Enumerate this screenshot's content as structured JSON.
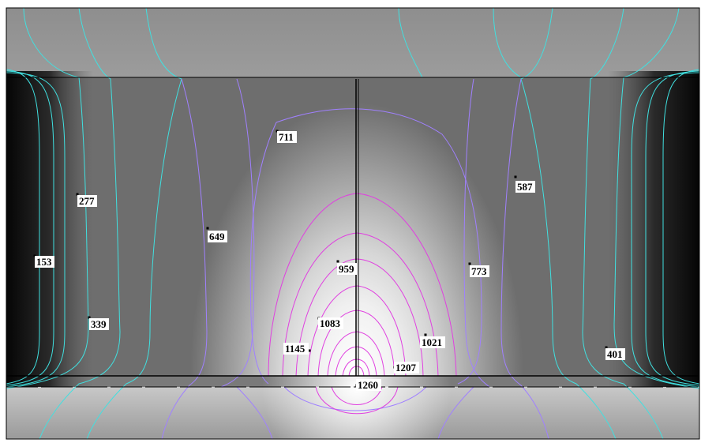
{
  "figure": {
    "type": "isotherm contour plot",
    "colors": {
      "background_dark": "#0a0a0a",
      "background_light": "#f6f6f6",
      "cool_contour": "#40e0e0",
      "mid_contour": "#a080ff",
      "hot_contour": "#e040e0",
      "structure_line": "#000000"
    },
    "contour_labels": [
      {
        "id": "711",
        "text": "711",
        "zone": "mid"
      },
      {
        "id": "587",
        "text": "587",
        "zone": "mid"
      },
      {
        "id": "277",
        "text": "277",
        "zone": "cool"
      },
      {
        "id": "649",
        "text": "649",
        "zone": "mid"
      },
      {
        "id": "153",
        "text": "153",
        "zone": "cool"
      },
      {
        "id": "959",
        "text": "959",
        "zone": "hot"
      },
      {
        "id": "773",
        "text": "773",
        "zone": "mid"
      },
      {
        "id": "339",
        "text": "339",
        "zone": "cool"
      },
      {
        "id": "1083",
        "text": "1083",
        "zone": "hot"
      },
      {
        "id": "1021",
        "text": "1021",
        "zone": "hot"
      },
      {
        "id": "1145",
        "text": "1145",
        "zone": "hot"
      },
      {
        "id": "401",
        "text": "401",
        "zone": "cool"
      },
      {
        "id": "1207",
        "text": "1207",
        "zone": "hot"
      },
      {
        "id": "1260",
        "text": "1260",
        "zone": "hot"
      }
    ]
  }
}
